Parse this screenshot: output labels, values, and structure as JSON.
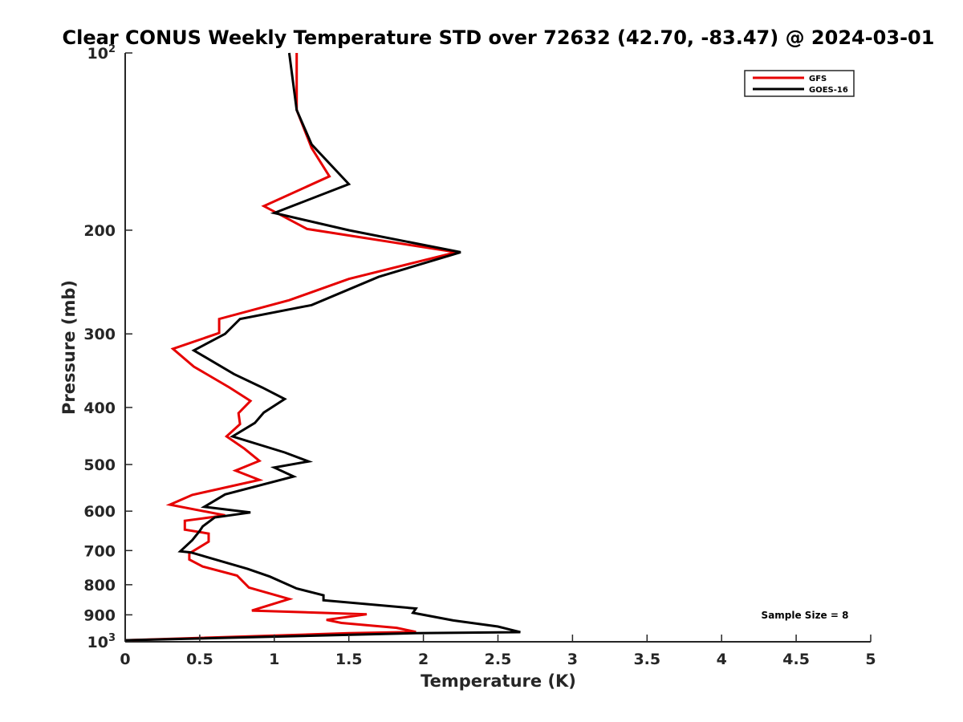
{
  "chart_data": {
    "type": "line",
    "title": "Clear CONUS Weekly Temperature STD over 72632 (42.70, -83.47) @ 2024-03-01",
    "xlabel": "Temperature (K)",
    "ylabel": "Pressure (mb)",
    "xlim": [
      0,
      5
    ],
    "ylim": [
      1000,
      100
    ],
    "yscale": "log",
    "y_reversed": true,
    "grid": false,
    "legend_position": "top-right",
    "x_ticks": [
      0,
      0.5,
      1,
      1.5,
      2,
      2.5,
      3,
      3.5,
      4,
      4.5,
      5
    ],
    "x_tick_labels": [
      "0",
      "0.5",
      "1",
      "1.5",
      "2",
      "2.5",
      "3",
      "3.5",
      "4",
      "4.5",
      "5"
    ],
    "y_ticks": [
      100,
      200,
      300,
      400,
      500,
      600,
      700,
      800,
      900,
      1000
    ],
    "y_tick_labels": [
      "10²",
      "200",
      "300",
      "400",
      "500",
      "600",
      "700",
      "800",
      "900",
      "10³"
    ],
    "annotation": "Sample Size = 8",
    "series": [
      {
        "name": "GFS",
        "color": "#e60000",
        "points": [
          [
            1.15,
            100
          ],
          [
            1.15,
            125
          ],
          [
            1.25,
            145
          ],
          [
            1.37,
            162
          ],
          [
            0.93,
            182
          ],
          [
            1.22,
            199
          ],
          [
            2.22,
            218
          ],
          [
            1.5,
            242
          ],
          [
            1.1,
            263
          ],
          [
            0.63,
            283
          ],
          [
            0.63,
            299
          ],
          [
            0.32,
            318
          ],
          [
            0.46,
            341
          ],
          [
            0.7,
            370
          ],
          [
            0.84,
            390
          ],
          [
            0.76,
            409
          ],
          [
            0.77,
            427
          ],
          [
            0.68,
            448
          ],
          [
            0.8,
            470
          ],
          [
            0.9,
            493
          ],
          [
            0.74,
            512
          ],
          [
            0.9,
            531
          ],
          [
            0.45,
            563
          ],
          [
            0.3,
            585
          ],
          [
            0.67,
            610
          ],
          [
            0.4,
            623
          ],
          [
            0.4,
            645
          ],
          [
            0.56,
            655
          ],
          [
            0.56,
            676
          ],
          [
            0.43,
            708
          ],
          [
            0.43,
            725
          ],
          [
            0.52,
            745
          ],
          [
            0.75,
            772
          ],
          [
            0.83,
            809
          ],
          [
            1.1,
            846
          ],
          [
            0.85,
            885
          ],
          [
            1.62,
            898
          ],
          [
            1.35,
            918
          ],
          [
            1.45,
            929
          ],
          [
            1.82,
            947
          ],
          [
            1.95,
            962
          ],
          [
            1.5,
            967
          ],
          [
            0.0,
            994
          ]
        ]
      },
      {
        "name": "GOES-16",
        "color": "#000000",
        "points": [
          [
            1.1,
            100
          ],
          [
            1.15,
            125
          ],
          [
            1.25,
            143
          ],
          [
            1.5,
            167
          ],
          [
            1.0,
            187
          ],
          [
            1.5,
            200
          ],
          [
            2.25,
            218
          ],
          [
            1.7,
            240
          ],
          [
            1.25,
            268
          ],
          [
            0.77,
            283
          ],
          [
            0.67,
            300
          ],
          [
            0.46,
            320
          ],
          [
            0.73,
            351
          ],
          [
            0.92,
            370
          ],
          [
            1.07,
            387
          ],
          [
            0.93,
            408
          ],
          [
            0.87,
            425
          ],
          [
            0.72,
            448
          ],
          [
            1.07,
            477
          ],
          [
            1.23,
            494
          ],
          [
            1.0,
            506
          ],
          [
            1.13,
            524
          ],
          [
            0.67,
            562
          ],
          [
            0.53,
            590
          ],
          [
            0.84,
            603
          ],
          [
            0.6,
            615
          ],
          [
            0.52,
            637
          ],
          [
            0.5,
            648
          ],
          [
            0.45,
            672
          ],
          [
            0.37,
            702
          ],
          [
            0.44,
            705
          ],
          [
            0.82,
            752
          ],
          [
            0.97,
            775
          ],
          [
            1.15,
            812
          ],
          [
            1.33,
            834
          ],
          [
            1.33,
            850
          ],
          [
            1.95,
            878
          ],
          [
            1.93,
            893
          ],
          [
            2.2,
            920
          ],
          [
            2.5,
            942
          ],
          [
            2.65,
            963
          ],
          [
            1.95,
            967
          ],
          [
            0.0,
            994
          ]
        ]
      }
    ]
  }
}
